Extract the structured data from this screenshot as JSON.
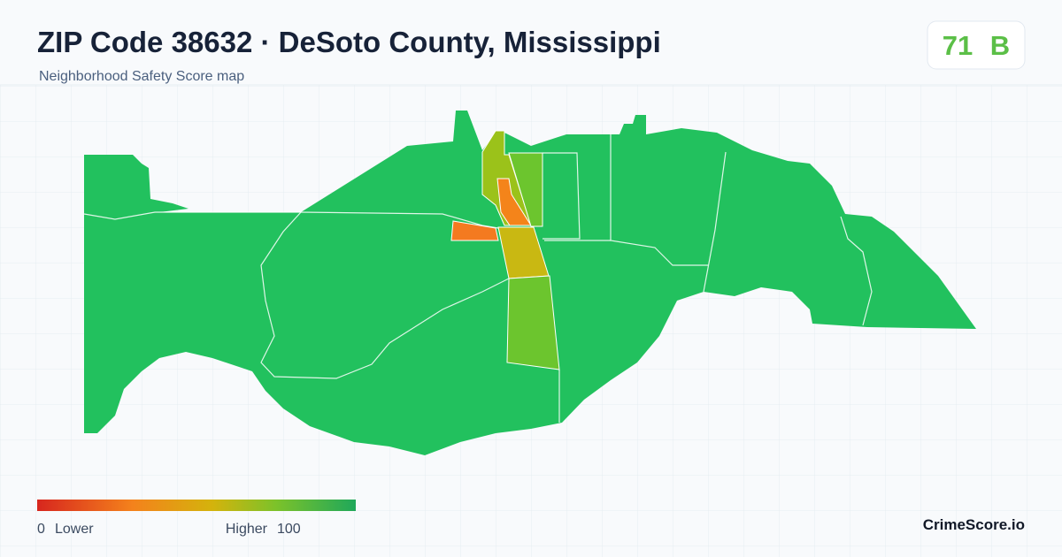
{
  "header": {
    "title": "ZIP Code 38632 · DeSoto County, Mississippi",
    "subtitle": "Neighborhood Safety Score map"
  },
  "score": {
    "value": 71,
    "grade": "B"
  },
  "legend": {
    "min": 0,
    "min_label": "Lower",
    "max_label": "Higher",
    "max": 100
  },
  "brand": "CrimeScore.io"
}
